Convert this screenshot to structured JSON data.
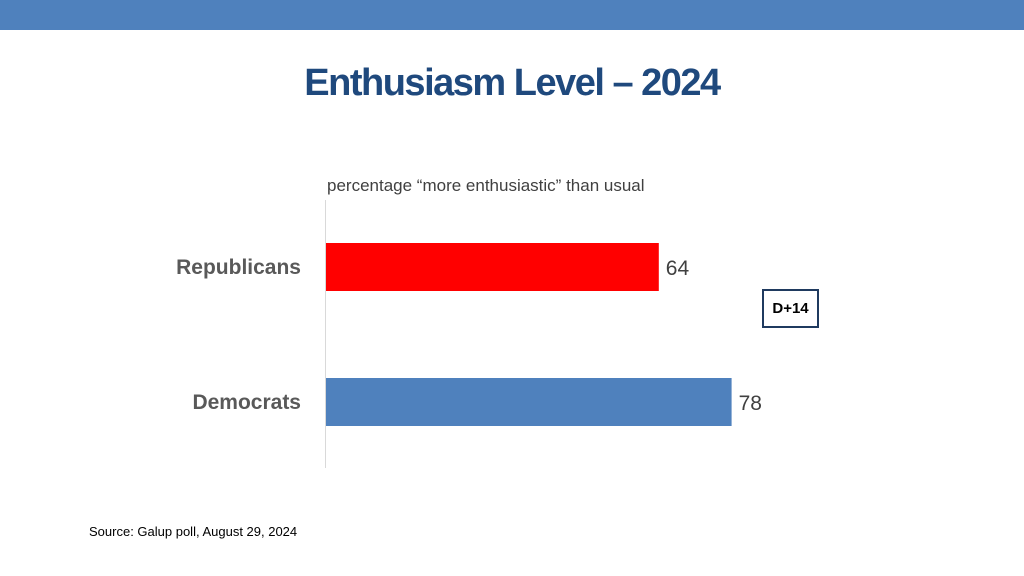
{
  "header": {
    "title": "Enthusiasm Level – 2024"
  },
  "chart_data": {
    "type": "bar",
    "orientation": "horizontal",
    "title": "Enthusiasm Level – 2024",
    "subtitle": "percentage “more enthusiastic” than usual",
    "categories": [
      "Republicans",
      "Democrats"
    ],
    "values": [
      64,
      78
    ],
    "colors": [
      "#ff0000",
      "#4f81bd"
    ],
    "xlim": [
      0,
      100
    ],
    "grid": false,
    "annotation": "D+14"
  },
  "footer": {
    "source": "Source: Galup poll, August 29, 2024"
  }
}
